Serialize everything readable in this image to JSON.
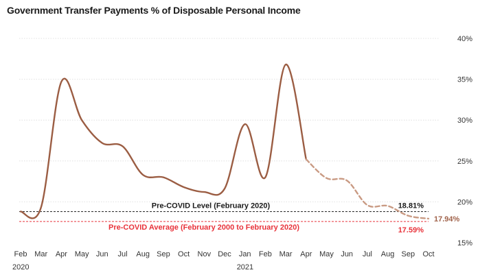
{
  "chart_data": {
    "type": "line",
    "title": "Government Transfer Payments % of Disposable Personal Income",
    "ylim": [
      15,
      40
    ],
    "y_ticks": [
      "15%",
      "20%",
      "25%",
      "30%",
      "35%",
      "40%"
    ],
    "y_tick_values": [
      15,
      20,
      25,
      30,
      35,
      40
    ],
    "x_ticks": [
      "Feb",
      "Mar",
      "Apr",
      "May",
      "Jun",
      "Jul",
      "Aug",
      "Sep",
      "Oct",
      "Nov",
      "Dec",
      "Jan",
      "Feb",
      "Mar",
      "Apr",
      "May",
      "Jun",
      "Jul",
      "Aug",
      "Sep",
      "Oct"
    ],
    "year_labels": [
      {
        "label": "2020",
        "index": 0
      },
      {
        "label": "2021",
        "index": 11
      }
    ],
    "grid": true,
    "series": [
      {
        "style": "solid",
        "color": "#9b5d43",
        "x": [
          "2020-02",
          "2020-03",
          "2020-04",
          "2020-05",
          "2020-06",
          "2020-07",
          "2020-08",
          "2020-09",
          "2020-10",
          "2020-11",
          "2020-12",
          "2021-01",
          "2021-02",
          "2021-03",
          "2021-04"
        ],
        "values": [
          18.81,
          19.3,
          34.7,
          30.0,
          27.2,
          26.8,
          23.3,
          23.0,
          21.8,
          21.2,
          21.6,
          29.5,
          23.0,
          36.8,
          25.2
        ]
      },
      {
        "style": "dashed",
        "color": "#c99a83",
        "x": [
          "2021-04",
          "2021-05",
          "2021-06",
          "2021-07",
          "2021-08",
          "2021-09",
          "2021-10"
        ],
        "values": [
          25.2,
          22.9,
          22.6,
          19.6,
          19.5,
          18.3,
          17.94
        ]
      }
    ],
    "reference_lines": [
      {
        "label": "Pre-COVID Level (February 2020)",
        "value": 18.81,
        "value_label": "18.81%",
        "color": "#1a1a1a"
      },
      {
        "label": "Pre-COVID Average (February 2000 to February 2020)",
        "value": 17.59,
        "value_label": "17.59%",
        "color": "#e8323a"
      }
    ],
    "end_label": {
      "text": "17.94%",
      "color": "#a0624a"
    }
  }
}
